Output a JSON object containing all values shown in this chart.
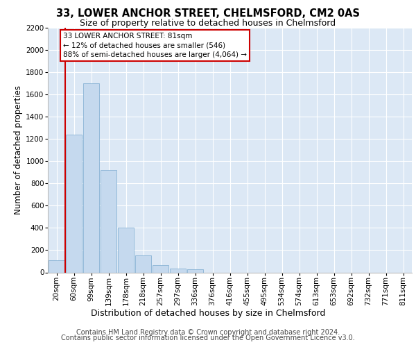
{
  "title1": "33, LOWER ANCHOR STREET, CHELMSFORD, CM2 0AS",
  "title2": "Size of property relative to detached houses in Chelmsford",
  "xlabel": "Distribution of detached houses by size in Chelmsford",
  "ylabel": "Number of detached properties",
  "footer1": "Contains HM Land Registry data © Crown copyright and database right 2024.",
  "footer2": "Contains public sector information licensed under the Open Government Licence v3.0.",
  "bin_labels": [
    "20sqm",
    "60sqm",
    "99sqm",
    "139sqm",
    "178sqm",
    "218sqm",
    "257sqm",
    "297sqm",
    "336sqm",
    "376sqm",
    "416sqm",
    "455sqm",
    "495sqm",
    "534sqm",
    "574sqm",
    "613sqm",
    "653sqm",
    "692sqm",
    "732sqm",
    "771sqm",
    "811sqm"
  ],
  "bar_values": [
    110,
    1240,
    1700,
    920,
    400,
    150,
    65,
    35,
    25,
    0,
    0,
    0,
    0,
    0,
    0,
    0,
    0,
    0,
    0,
    0,
    0
  ],
  "bar_color": "#c5d9ee",
  "bar_edge_color": "#7aaacf",
  "vline_x": 0.5,
  "vline_color": "#cc0000",
  "annotation_text": "33 LOWER ANCHOR STREET: 81sqm\n← 12% of detached houses are smaller (546)\n88% of semi-detached houses are larger (4,064) →",
  "annotation_box_color": "#ffffff",
  "annotation_box_edge": "#cc0000",
  "ylim": [
    0,
    2200
  ],
  "yticks": [
    0,
    200,
    400,
    600,
    800,
    1000,
    1200,
    1400,
    1600,
    1800,
    2000,
    2200
  ],
  "bg_color": "#dce8f5",
  "grid_color": "#ffffff",
  "title1_fontsize": 10.5,
  "title2_fontsize": 9,
  "xlabel_fontsize": 9,
  "ylabel_fontsize": 8.5,
  "tick_fontsize": 7.5,
  "annotation_fontsize": 7.5,
  "footer_fontsize": 7.0
}
